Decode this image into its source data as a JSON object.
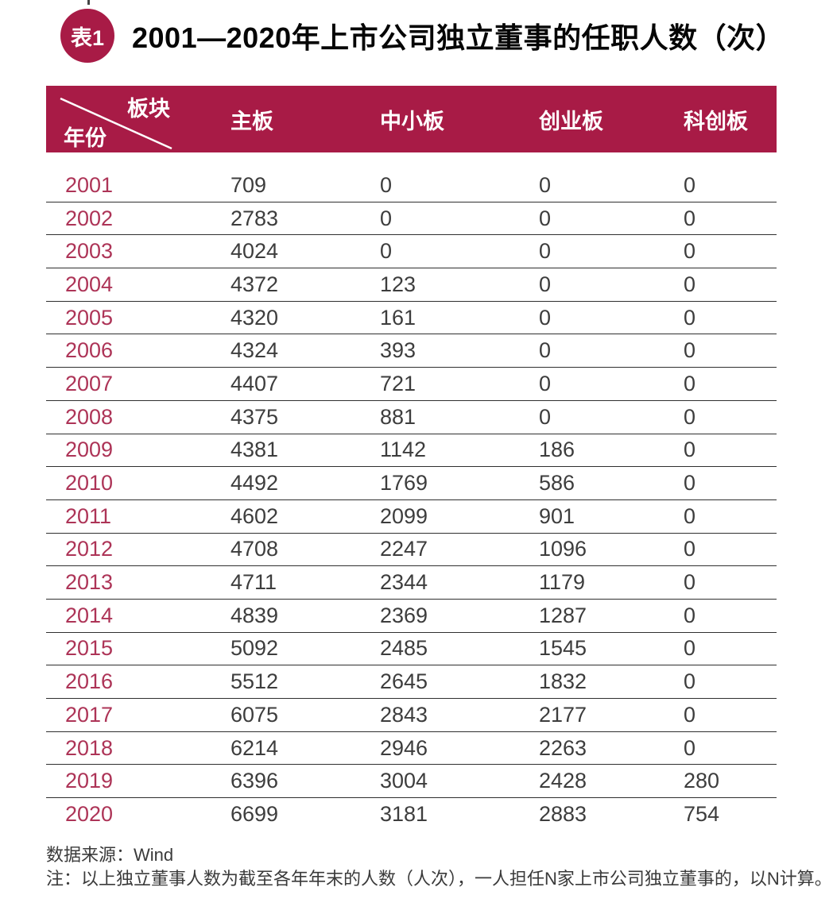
{
  "badge_label": "表1",
  "title": "2001—2020年上市公司独立董事的任职人数（次）",
  "colors": {
    "primary": "#a81b46",
    "year_text": "#ad3457",
    "value_text": "#3d3d3d"
  },
  "chart_data": {
    "type": "table",
    "title": "2001—2020年上市公司独立董事的任职人数（次）",
    "column_header_label": "板块",
    "row_header_label": "年份",
    "columns": [
      "主板",
      "中小板",
      "创业板",
      "科创板"
    ],
    "rows": [
      {
        "year": "2001",
        "values": [
          709,
          0,
          0,
          0
        ]
      },
      {
        "year": "2002",
        "values": [
          2783,
          0,
          0,
          0
        ]
      },
      {
        "year": "2003",
        "values": [
          4024,
          0,
          0,
          0
        ]
      },
      {
        "year": "2004",
        "values": [
          4372,
          123,
          0,
          0
        ]
      },
      {
        "year": "2005",
        "values": [
          4320,
          161,
          0,
          0
        ]
      },
      {
        "year": "2006",
        "values": [
          4324,
          393,
          0,
          0
        ]
      },
      {
        "year": "2007",
        "values": [
          4407,
          721,
          0,
          0
        ]
      },
      {
        "year": "2008",
        "values": [
          4375,
          881,
          0,
          0
        ]
      },
      {
        "year": "2009",
        "values": [
          4381,
          1142,
          186,
          0
        ]
      },
      {
        "year": "2010",
        "values": [
          4492,
          1769,
          586,
          0
        ]
      },
      {
        "year": "2011",
        "values": [
          4602,
          2099,
          901,
          0
        ]
      },
      {
        "year": "2012",
        "values": [
          4708,
          2247,
          1096,
          0
        ]
      },
      {
        "year": "2013",
        "values": [
          4711,
          2344,
          1179,
          0
        ]
      },
      {
        "year": "2014",
        "values": [
          4839,
          2369,
          1287,
          0
        ]
      },
      {
        "year": "2015",
        "values": [
          5092,
          2485,
          1545,
          0
        ]
      },
      {
        "year": "2016",
        "values": [
          5512,
          2645,
          1832,
          0
        ]
      },
      {
        "year": "2017",
        "values": [
          6075,
          2843,
          2177,
          0
        ]
      },
      {
        "year": "2018",
        "values": [
          6214,
          2946,
          2263,
          0
        ]
      },
      {
        "year": "2019",
        "values": [
          6396,
          3004,
          2428,
          280
        ]
      },
      {
        "year": "2020",
        "values": [
          6699,
          3181,
          2883,
          754
        ]
      }
    ]
  },
  "footer": {
    "source": "数据来源：Wind",
    "note": "注：以上独立董事人数为截至各年年末的人数（人次），一人担任N家上市公司独立董事的，以N计算。"
  }
}
